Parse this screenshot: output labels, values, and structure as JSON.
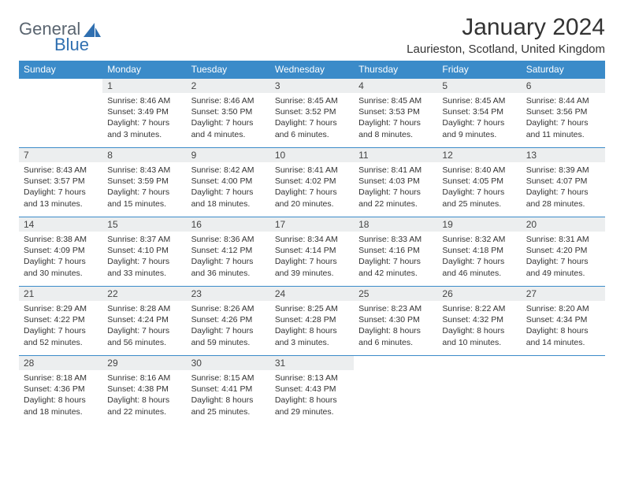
{
  "logo": {
    "text1": "General",
    "text2": "Blue"
  },
  "title": "January 2024",
  "location": "Laurieston, Scotland, United Kingdom",
  "colors": {
    "header_bg": "#3b8bc9",
    "header_fg": "#ffffff",
    "daynum_bg": "#eceeef",
    "row_border": "#3b8bc9",
    "logo_gray": "#5a6570",
    "logo_blue": "#2f6fb0"
  },
  "weekdays": [
    "Sunday",
    "Monday",
    "Tuesday",
    "Wednesday",
    "Thursday",
    "Friday",
    "Saturday"
  ],
  "weeks": [
    [
      {
        "n": "",
        "sr": "",
        "ss": "",
        "dl": "",
        "empty": true
      },
      {
        "n": "1",
        "sr": "Sunrise: 8:46 AM",
        "ss": "Sunset: 3:49 PM",
        "dl": "Daylight: 7 hours and 3 minutes."
      },
      {
        "n": "2",
        "sr": "Sunrise: 8:46 AM",
        "ss": "Sunset: 3:50 PM",
        "dl": "Daylight: 7 hours and 4 minutes."
      },
      {
        "n": "3",
        "sr": "Sunrise: 8:45 AM",
        "ss": "Sunset: 3:52 PM",
        "dl": "Daylight: 7 hours and 6 minutes."
      },
      {
        "n": "4",
        "sr": "Sunrise: 8:45 AM",
        "ss": "Sunset: 3:53 PM",
        "dl": "Daylight: 7 hours and 8 minutes."
      },
      {
        "n": "5",
        "sr": "Sunrise: 8:45 AM",
        "ss": "Sunset: 3:54 PM",
        "dl": "Daylight: 7 hours and 9 minutes."
      },
      {
        "n": "6",
        "sr": "Sunrise: 8:44 AM",
        "ss": "Sunset: 3:56 PM",
        "dl": "Daylight: 7 hours and 11 minutes."
      }
    ],
    [
      {
        "n": "7",
        "sr": "Sunrise: 8:43 AM",
        "ss": "Sunset: 3:57 PM",
        "dl": "Daylight: 7 hours and 13 minutes."
      },
      {
        "n": "8",
        "sr": "Sunrise: 8:43 AM",
        "ss": "Sunset: 3:59 PM",
        "dl": "Daylight: 7 hours and 15 minutes."
      },
      {
        "n": "9",
        "sr": "Sunrise: 8:42 AM",
        "ss": "Sunset: 4:00 PM",
        "dl": "Daylight: 7 hours and 18 minutes."
      },
      {
        "n": "10",
        "sr": "Sunrise: 8:41 AM",
        "ss": "Sunset: 4:02 PM",
        "dl": "Daylight: 7 hours and 20 minutes."
      },
      {
        "n": "11",
        "sr": "Sunrise: 8:41 AM",
        "ss": "Sunset: 4:03 PM",
        "dl": "Daylight: 7 hours and 22 minutes."
      },
      {
        "n": "12",
        "sr": "Sunrise: 8:40 AM",
        "ss": "Sunset: 4:05 PM",
        "dl": "Daylight: 7 hours and 25 minutes."
      },
      {
        "n": "13",
        "sr": "Sunrise: 8:39 AM",
        "ss": "Sunset: 4:07 PM",
        "dl": "Daylight: 7 hours and 28 minutes."
      }
    ],
    [
      {
        "n": "14",
        "sr": "Sunrise: 8:38 AM",
        "ss": "Sunset: 4:09 PM",
        "dl": "Daylight: 7 hours and 30 minutes."
      },
      {
        "n": "15",
        "sr": "Sunrise: 8:37 AM",
        "ss": "Sunset: 4:10 PM",
        "dl": "Daylight: 7 hours and 33 minutes."
      },
      {
        "n": "16",
        "sr": "Sunrise: 8:36 AM",
        "ss": "Sunset: 4:12 PM",
        "dl": "Daylight: 7 hours and 36 minutes."
      },
      {
        "n": "17",
        "sr": "Sunrise: 8:34 AM",
        "ss": "Sunset: 4:14 PM",
        "dl": "Daylight: 7 hours and 39 minutes."
      },
      {
        "n": "18",
        "sr": "Sunrise: 8:33 AM",
        "ss": "Sunset: 4:16 PM",
        "dl": "Daylight: 7 hours and 42 minutes."
      },
      {
        "n": "19",
        "sr": "Sunrise: 8:32 AM",
        "ss": "Sunset: 4:18 PM",
        "dl": "Daylight: 7 hours and 46 minutes."
      },
      {
        "n": "20",
        "sr": "Sunrise: 8:31 AM",
        "ss": "Sunset: 4:20 PM",
        "dl": "Daylight: 7 hours and 49 minutes."
      }
    ],
    [
      {
        "n": "21",
        "sr": "Sunrise: 8:29 AM",
        "ss": "Sunset: 4:22 PM",
        "dl": "Daylight: 7 hours and 52 minutes."
      },
      {
        "n": "22",
        "sr": "Sunrise: 8:28 AM",
        "ss": "Sunset: 4:24 PM",
        "dl": "Daylight: 7 hours and 56 minutes."
      },
      {
        "n": "23",
        "sr": "Sunrise: 8:26 AM",
        "ss": "Sunset: 4:26 PM",
        "dl": "Daylight: 7 hours and 59 minutes."
      },
      {
        "n": "24",
        "sr": "Sunrise: 8:25 AM",
        "ss": "Sunset: 4:28 PM",
        "dl": "Daylight: 8 hours and 3 minutes."
      },
      {
        "n": "25",
        "sr": "Sunrise: 8:23 AM",
        "ss": "Sunset: 4:30 PM",
        "dl": "Daylight: 8 hours and 6 minutes."
      },
      {
        "n": "26",
        "sr": "Sunrise: 8:22 AM",
        "ss": "Sunset: 4:32 PM",
        "dl": "Daylight: 8 hours and 10 minutes."
      },
      {
        "n": "27",
        "sr": "Sunrise: 8:20 AM",
        "ss": "Sunset: 4:34 PM",
        "dl": "Daylight: 8 hours and 14 minutes."
      }
    ],
    [
      {
        "n": "28",
        "sr": "Sunrise: 8:18 AM",
        "ss": "Sunset: 4:36 PM",
        "dl": "Daylight: 8 hours and 18 minutes."
      },
      {
        "n": "29",
        "sr": "Sunrise: 8:16 AM",
        "ss": "Sunset: 4:38 PM",
        "dl": "Daylight: 8 hours and 22 minutes."
      },
      {
        "n": "30",
        "sr": "Sunrise: 8:15 AM",
        "ss": "Sunset: 4:41 PM",
        "dl": "Daylight: 8 hours and 25 minutes."
      },
      {
        "n": "31",
        "sr": "Sunrise: 8:13 AM",
        "ss": "Sunset: 4:43 PM",
        "dl": "Daylight: 8 hours and 29 minutes."
      },
      {
        "n": "",
        "sr": "",
        "ss": "",
        "dl": "",
        "empty": true
      },
      {
        "n": "",
        "sr": "",
        "ss": "",
        "dl": "",
        "empty": true
      },
      {
        "n": "",
        "sr": "",
        "ss": "",
        "dl": "",
        "empty": true
      }
    ]
  ]
}
